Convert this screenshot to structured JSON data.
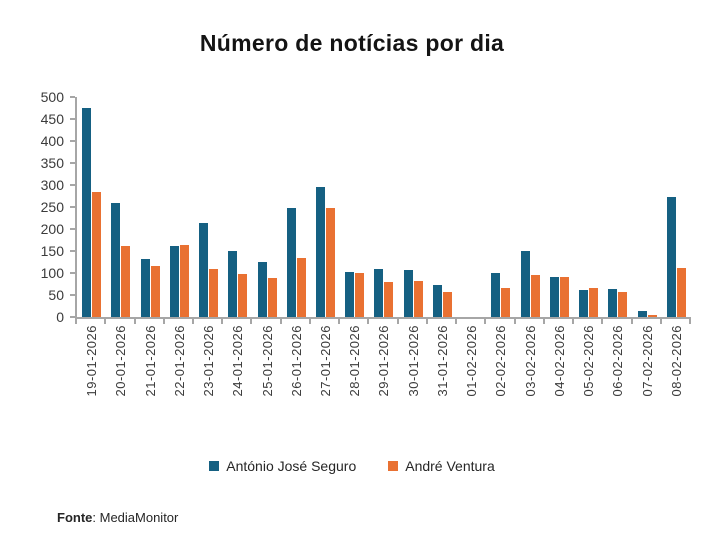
{
  "title": "Número de notícias por dia",
  "footer": {
    "label": "Fonte",
    "value": ": MediaMonitor"
  },
  "colors": {
    "seguro_blue": "#156082",
    "ventura_orange": "#E97132",
    "axis_gray": "#A6A6A6",
    "text_dark": "#262626"
  },
  "chart_data": {
    "type": "bar",
    "title": "Número de notícias por dia",
    "xlabel": "",
    "ylabel": "",
    "ylim": [
      0,
      500
    ],
    "ytick_step": 50,
    "grid": false,
    "legend_position": "bottom",
    "categories": [
      "19-01-2026",
      "20-01-2026",
      "21-01-2026",
      "22-01-2026",
      "23-01-2026",
      "24-01-2026",
      "25-01-2026",
      "26-01-2026",
      "27-01-2026",
      "28-01-2026",
      "29-01-2026",
      "30-01-2026",
      "31-01-2026",
      "01-02-2026",
      "02-02-2026",
      "03-02-2026",
      "04-02-2026",
      "05-02-2026",
      "06-02-2026",
      "07-02-2026",
      "08-02-2026"
    ],
    "series": [
      {
        "name": "António José Seguro",
        "color": "#156082",
        "values": [
          475,
          260,
          131,
          161,
          214,
          150,
          126,
          248,
          296,
          102,
          110,
          107,
          72,
          0,
          101,
          149,
          91,
          61,
          63,
          13,
          272
        ]
      },
      {
        "name": "André Ventura",
        "color": "#E97132",
        "values": [
          284,
          161,
          116,
          164,
          109,
          97,
          89,
          134,
          248,
          99,
          79,
          83,
          58,
          0,
          67,
          96,
          90,
          65,
          58,
          4,
          112
        ]
      }
    ]
  }
}
